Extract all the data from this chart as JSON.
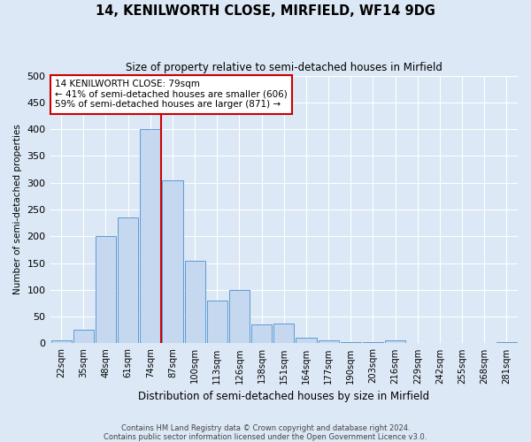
{
  "title": "14, KENILWORTH CLOSE, MIRFIELD, WF14 9DG",
  "subtitle": "Size of property relative to semi-detached houses in Mirfield",
  "xlabel": "Distribution of semi-detached houses by size in Mirfield",
  "ylabel": "Number of semi-detached properties",
  "bin_labels": [
    "22sqm",
    "35sqm",
    "48sqm",
    "61sqm",
    "74sqm",
    "87sqm",
    "100sqm",
    "113sqm",
    "126sqm",
    "138sqm",
    "151sqm",
    "164sqm",
    "177sqm",
    "190sqm",
    "203sqm",
    "216sqm",
    "229sqm",
    "242sqm",
    "255sqm",
    "268sqm",
    "281sqm"
  ],
  "bar_values": [
    5,
    25,
    200,
    235,
    400,
    305,
    155,
    80,
    100,
    35,
    37,
    10,
    6,
    3,
    2,
    6,
    1,
    1,
    1,
    1,
    2
  ],
  "bar_color": "#c5d8ef",
  "bar_edge_color": "#5b9bd5",
  "red_line_x": 4.5,
  "red_line_color": "#cc0000",
  "annotation_text": "14 KENILWORTH CLOSE: 79sqm\n← 41% of semi-detached houses are smaller (606)\n59% of semi-detached houses are larger (871) →",
  "annotation_box_color": "#ffffff",
  "annotation_box_edge": "#cc0000",
  "footer_line1": "Contains HM Land Registry data © Crown copyright and database right 2024.",
  "footer_line2": "Contains public sector information licensed under the Open Government Licence v3.0.",
  "ylim": [
    0,
    500
  ],
  "yticks": [
    0,
    50,
    100,
    150,
    200,
    250,
    300,
    350,
    400,
    450,
    500
  ],
  "bg_color": "#dce8f5",
  "grid_color": "#ffffff"
}
